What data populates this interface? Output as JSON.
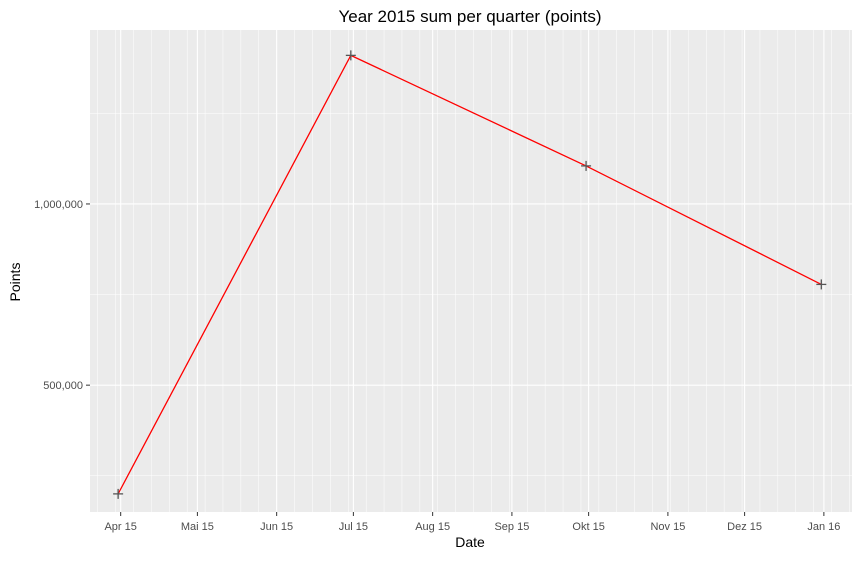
{
  "chart_data": {
    "type": "line",
    "title": "Year 2015 sum per quarter (points)",
    "xlabel": "Date",
    "ylabel": "Points",
    "x_ticks": [
      "Apr 15",
      "Mai 15",
      "Jun 15",
      "Jul 15",
      "Aug 15",
      "Sep 15",
      "Okt 15",
      "Nov 15",
      "Dez 15",
      "Jan 16"
    ],
    "y_ticks": [
      "500,000",
      "1,000,000"
    ],
    "y_tick_values": [
      500000,
      1000000
    ],
    "ylim": [
      150000,
      1480000
    ],
    "xlim": [
      "2015-03-20",
      "2016-01-12"
    ],
    "x_tick_dates": [
      "2015-04-01",
      "2015-05-01",
      "2015-06-01",
      "2015-07-01",
      "2015-08-01",
      "2015-09-01",
      "2015-10-01",
      "2015-11-01",
      "2015-12-01",
      "2016-01-01"
    ],
    "grid": true,
    "series": [
      {
        "color": "#ff0000",
        "marker": "plus",
        "marker_color": "#555555",
        "points": [
          {
            "x": "2015-03-31",
            "y": 200000
          },
          {
            "x": "2015-06-30",
            "y": 1410000
          },
          {
            "x": "2015-09-30",
            "y": 1105000
          },
          {
            "x": "2015-12-31",
            "y": 778000
          }
        ]
      }
    ],
    "colors": {
      "panel_background": "#ebebeb",
      "gridline": "#ffffff",
      "text": "#000000",
      "tick_text": "#4d4d4d"
    }
  }
}
